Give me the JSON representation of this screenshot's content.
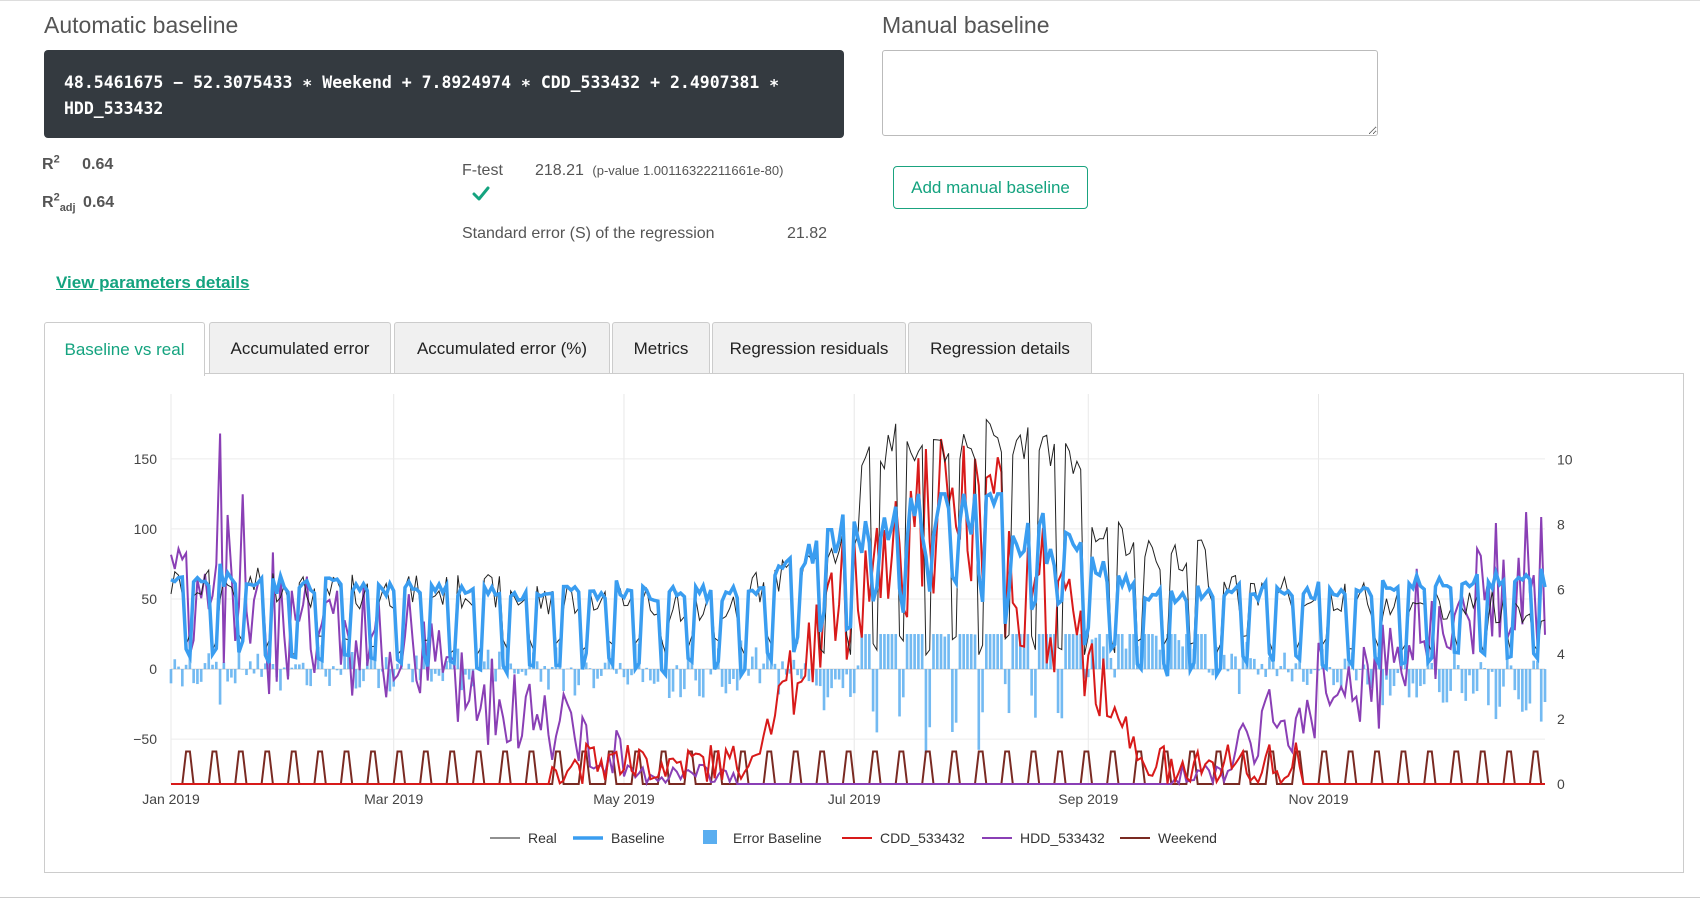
{
  "automatic": {
    "title": "Automatic baseline",
    "formula_line1": "48.5461675 − 52.3075433 ∗ Weekend + 7.8924974 ∗ CDD_533432 + 2.4907381 ∗",
    "formula_line2": "HDD_533432"
  },
  "manual": {
    "title": "Manual baseline",
    "textarea_value": "",
    "add_label": "Add manual baseline"
  },
  "stats": {
    "r2_label": "R",
    "r2_sup": "2",
    "r2_value": "0.64",
    "r2adj_label": "R",
    "r2adj_sup": "2",
    "r2adj_sub": "adj",
    "r2adj_value": "0.64",
    "ftest_label": "F-test",
    "ftest_value": "218.21",
    "ftest_pvalue": "(p-value 1.00116322211661e-80)",
    "se_label": "Standard error (S) of the regression",
    "se_value": "21.82"
  },
  "details_link": "View parameters details",
  "tabs": [
    {
      "label": "Baseline vs real",
      "active": true
    },
    {
      "label": "Accumulated error",
      "active": false
    },
    {
      "label": "Accumulated error (%)",
      "active": false
    },
    {
      "label": "Metrics",
      "active": false
    },
    {
      "label": "Regression residuals",
      "active": false
    },
    {
      "label": "Regression details",
      "active": false
    }
  ],
  "colors": {
    "accent": "#14a37f",
    "real": "#222222",
    "baseline": "#3a9df0",
    "error": "#5aaef0",
    "cdd": "#d81a1a",
    "hdd": "#8a3fb5",
    "weekend": "#7a2a22"
  },
  "chart_data": {
    "type": "line",
    "x_range": [
      "2019-01-01",
      "2019-12-31"
    ],
    "x_ticks": [
      "Jan 2019",
      "Mar 2019",
      "May 2019",
      "Jul 2019",
      "Sep 2019",
      "Nov 2019"
    ],
    "y_left_ticks": [
      "−50",
      "0",
      "50",
      "100",
      "150"
    ],
    "y_left_range": [
      -82,
      182
    ],
    "y_right_ticks": [
      "0",
      "2",
      "4",
      "6",
      "8",
      "10"
    ],
    "y_right_range": [
      0,
      11.4
    ],
    "grid": true,
    "legend_position": "bottom",
    "series": [
      {
        "name": "Real",
        "axis": "left",
        "style": "thin line",
        "monthly_levels": [
          60,
          55,
          55,
          50,
          45,
          50,
          110,
          120,
          80,
          55,
          50,
          45
        ],
        "peak": 175
      },
      {
        "name": "Baseline",
        "axis": "left",
        "style": "thick line",
        "weekday_level": 60,
        "weekend_level": 10,
        "summer_level": 100
      },
      {
        "name": "Error Baseline",
        "axis": "left",
        "style": "bars",
        "range": [
          -60,
          25
        ]
      },
      {
        "name": "CDD_533432",
        "axis": "right",
        "style": "line",
        "summer_peak": 11.2
      },
      {
        "name": "HDD_533432",
        "axis": "right",
        "style": "line",
        "winter_peak": 10.8
      },
      {
        "name": "Weekend",
        "axis": "right",
        "style": "line",
        "values": [
          0,
          1
        ]
      }
    ]
  }
}
